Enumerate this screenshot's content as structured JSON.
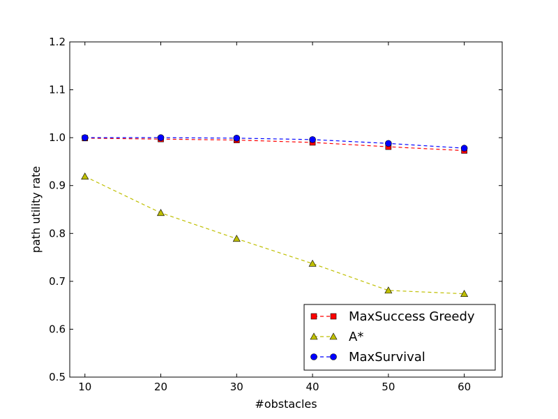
{
  "chart_data": {
    "type": "line",
    "xlabel": "#obstacles",
    "ylabel": "path utility rate",
    "xlim": [
      8,
      65
    ],
    "ylim": [
      0.5,
      1.2
    ],
    "x_ticks": [
      10,
      20,
      30,
      40,
      50,
      60
    ],
    "y_ticks": [
      0.5,
      0.6,
      0.7,
      0.8,
      0.9,
      1.0,
      1.1,
      1.2
    ],
    "x_tick_labels": [
      "10",
      "20",
      "30",
      "40",
      "50",
      "60"
    ],
    "y_tick_labels": [
      "0.5",
      "0.6",
      "0.7",
      "0.8",
      "0.9",
      "1.0",
      "1.1",
      "1.2"
    ],
    "x": [
      10,
      20,
      30,
      40,
      50,
      60
    ],
    "grid": false,
    "legend_position": "bottom-right",
    "series": [
      {
        "name": "MaxSuccess Greedy",
        "values": [
          0.999,
          0.997,
          0.995,
          0.99,
          0.981,
          0.973
        ],
        "color": "#ff0000",
        "marker": "square"
      },
      {
        "name": "A*",
        "values": [
          0.919,
          0.843,
          0.789,
          0.737,
          0.681,
          0.674
        ],
        "color": "#bfbf00",
        "marker": "triangle"
      },
      {
        "name": "MaxSurvival",
        "values": [
          1.0,
          1.0,
          0.999,
          0.996,
          0.988,
          0.978
        ],
        "color": "#0000ff",
        "marker": "circle"
      }
    ]
  }
}
